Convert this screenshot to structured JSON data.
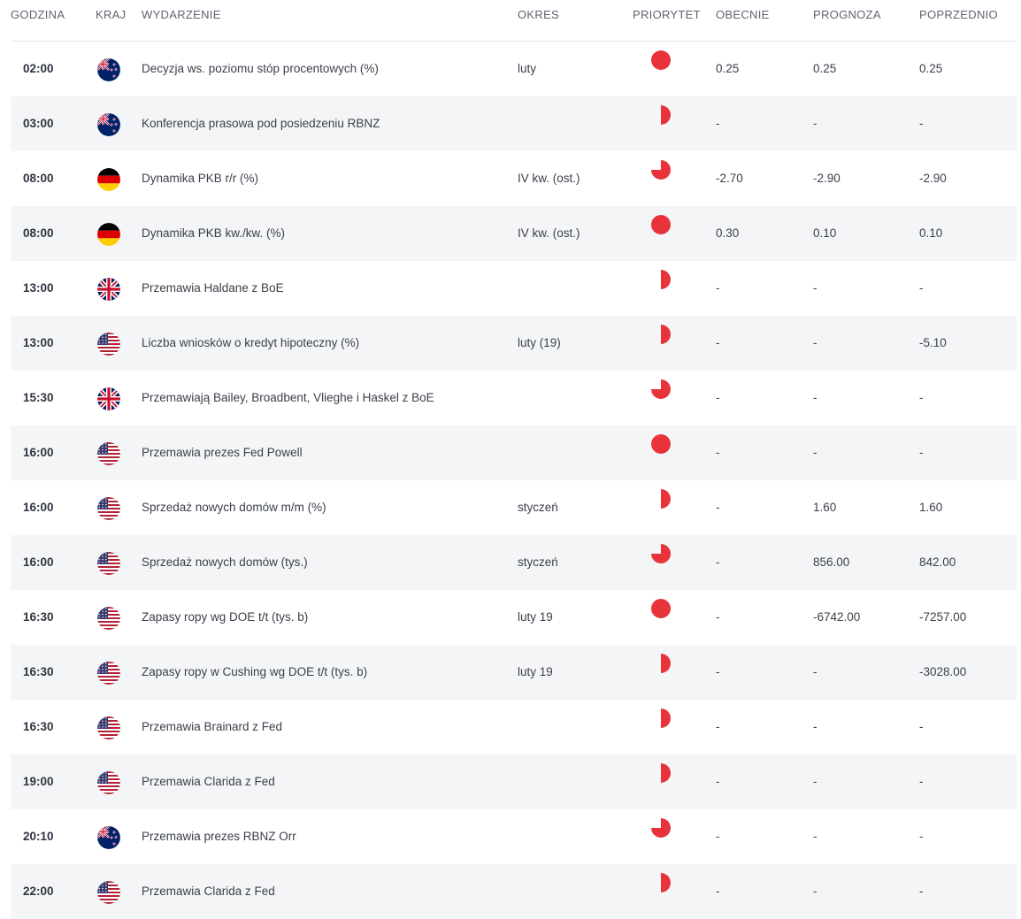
{
  "columns": {
    "time": "GODZINA",
    "country": "KRAJ",
    "event": "WYDARZENIE",
    "period": "OKRES",
    "priority": "PRIORYTET",
    "actual": "OBECNIE",
    "forecast": "PROGNOZA",
    "previous": "POPRZEDNIO"
  },
  "colors": {
    "priority_red": "#e8333a",
    "row_alt": "#f4f5f7",
    "divider": "#dfe2e6"
  },
  "rows": [
    {
      "time": "02:00",
      "country": "nz",
      "country_icon": "new-zealand-flag-icon",
      "event": "Decyzja ws. poziomu stóp procentowych (%)",
      "period": "luty",
      "priority": "high",
      "actual": "0.25",
      "forecast": "0.25",
      "previous": "0.25"
    },
    {
      "time": "03:00",
      "country": "nz",
      "country_icon": "new-zealand-flag-icon",
      "event": "Konferencja prasowa pod posiedzeniu RBNZ",
      "period": "",
      "priority": "low",
      "actual": "-",
      "forecast": "-",
      "previous": "-"
    },
    {
      "time": "08:00",
      "country": "de",
      "country_icon": "germany-flag-icon",
      "event": "Dynamika PKB r/r (%)",
      "period": "IV kw. (ost.)",
      "priority": "medium",
      "actual": "-2.70",
      "forecast": "-2.90",
      "previous": "-2.90"
    },
    {
      "time": "08:00",
      "country": "de",
      "country_icon": "germany-flag-icon",
      "event": "Dynamika PKB kw./kw. (%)",
      "period": "IV kw. (ost.)",
      "priority": "high",
      "actual": "0.30",
      "forecast": "0.10",
      "previous": "0.10"
    },
    {
      "time": "13:00",
      "country": "gb",
      "country_icon": "uk-flag-icon",
      "event": "Przemawia Haldane z BoE",
      "period": "",
      "priority": "low",
      "actual": "-",
      "forecast": "-",
      "previous": "-"
    },
    {
      "time": "13:00",
      "country": "us",
      "country_icon": "usa-flag-icon",
      "event": "Liczba wniosków o kredyt hipoteczny (%)",
      "period": "luty (19)",
      "priority": "low",
      "actual": "-",
      "forecast": "-",
      "previous": "-5.10"
    },
    {
      "time": "15:30",
      "country": "gb",
      "country_icon": "uk-flag-icon",
      "event": "Przemawiają Bailey, Broadbent, Vlieghe i Haskel z BoE",
      "period": "",
      "priority": "medium",
      "actual": "-",
      "forecast": "-",
      "previous": "-"
    },
    {
      "time": "16:00",
      "country": "us",
      "country_icon": "usa-flag-icon",
      "event": "Przemawia prezes Fed Powell",
      "period": "",
      "priority": "high",
      "actual": "-",
      "forecast": "-",
      "previous": "-"
    },
    {
      "time": "16:00",
      "country": "us",
      "country_icon": "usa-flag-icon",
      "event": "Sprzedaż nowych domów m/m (%)",
      "period": "styczeń",
      "priority": "low",
      "actual": "-",
      "forecast": "1.60",
      "previous": "1.60"
    },
    {
      "time": "16:00",
      "country": "us",
      "country_icon": "usa-flag-icon",
      "event": "Sprzedaż nowych domów (tys.)",
      "period": "styczeń",
      "priority": "medium",
      "actual": "-",
      "forecast": "856.00",
      "previous": "842.00"
    },
    {
      "time": "16:30",
      "country": "us",
      "country_icon": "usa-flag-icon",
      "event": "Zapasy ropy wg DOE t/t (tys. b)",
      "period": "luty 19",
      "priority": "high",
      "actual": "-",
      "forecast": "-6742.00",
      "previous": "-7257.00"
    },
    {
      "time": "16:30",
      "country": "us",
      "country_icon": "usa-flag-icon",
      "event": "Zapasy ropy w Cushing wg DOE t/t (tys. b)",
      "period": "luty 19",
      "priority": "low",
      "actual": "-",
      "forecast": "-",
      "previous": "-3028.00"
    },
    {
      "time": "16:30",
      "country": "us",
      "country_icon": "usa-flag-icon",
      "event": "Przemawia Brainard z Fed",
      "period": "",
      "priority": "low",
      "actual": "-",
      "forecast": "-",
      "previous": "-"
    },
    {
      "time": "19:00",
      "country": "us",
      "country_icon": "usa-flag-icon",
      "event": "Przemawia Clarida z Fed",
      "period": "",
      "priority": "low",
      "actual": "-",
      "forecast": "-",
      "previous": "-"
    },
    {
      "time": "20:10",
      "country": "nz",
      "country_icon": "new-zealand-flag-icon",
      "event": "Przemawia prezes RBNZ Orr",
      "period": "",
      "priority": "medium",
      "actual": "-",
      "forecast": "-",
      "previous": "-"
    },
    {
      "time": "22:00",
      "country": "us",
      "country_icon": "usa-flag-icon",
      "event": "Przemawia Clarida z Fed",
      "period": "",
      "priority": "low",
      "actual": "-",
      "forecast": "-",
      "previous": "-"
    }
  ]
}
